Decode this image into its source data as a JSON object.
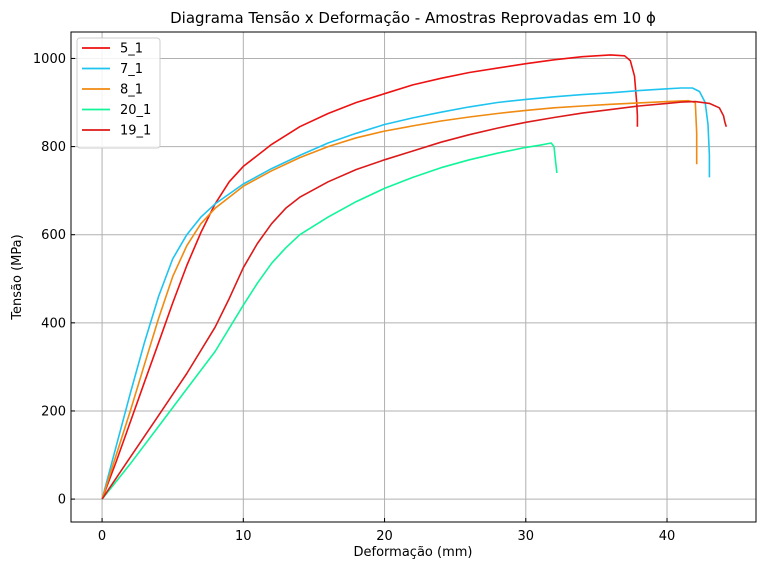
{
  "chart_data": {
    "type": "line",
    "title": "Diagrama Tensão x Deformação - Amostras Reprovadas em 10 ϕ",
    "xlabel": "Deformação (mm)",
    "ylabel": "Tensão (MPa)",
    "xlim": [
      -2.2,
      46.3
    ],
    "ylim": [
      -52,
      1060
    ],
    "xticks": [
      0,
      10,
      20,
      30,
      40
    ],
    "yticks": [
      0,
      200,
      400,
      600,
      800,
      1000
    ],
    "grid": true,
    "legend_position": "top-left",
    "series": [
      {
        "name": "5_1",
        "color": "#ee1111",
        "x": [
          0,
          1,
          2,
          3,
          4,
          5,
          6,
          7,
          8,
          9,
          10,
          12,
          14,
          16,
          18,
          20,
          22,
          24,
          26,
          28,
          30,
          32,
          34,
          35,
          36,
          37,
          37.4,
          37.7,
          37.85,
          37.9,
          37.9
        ],
        "y": [
          0,
          85,
          175,
          265,
          355,
          445,
          530,
          605,
          670,
          720,
          755,
          805,
          845,
          875,
          900,
          920,
          940,
          955,
          968,
          978,
          988,
          997,
          1004,
          1006,
          1008,
          1006,
          995,
          960,
          900,
          870,
          845
        ]
      },
      {
        "name": "7_1",
        "color": "#1ec4f0",
        "x": [
          0,
          1,
          2,
          3,
          4,
          5,
          6,
          7,
          8,
          10,
          12,
          14,
          16,
          18,
          20,
          22,
          24,
          26,
          28,
          30,
          32,
          34,
          36,
          38,
          40,
          41,
          41.8,
          42.3,
          42.7,
          42.9,
          43.0,
          43.0
        ],
        "y": [
          0,
          120,
          240,
          355,
          460,
          545,
          600,
          640,
          670,
          715,
          750,
          780,
          808,
          830,
          850,
          865,
          878,
          890,
          900,
          907,
          913,
          918,
          922,
          927,
          931,
          933,
          933,
          925,
          900,
          850,
          780,
          730
        ]
      },
      {
        "name": "8_1",
        "color": "#f08a10",
        "x": [
          0,
          1,
          2,
          3,
          4,
          5,
          6,
          7,
          8,
          10,
          12,
          14,
          16,
          18,
          20,
          22,
          24,
          26,
          28,
          30,
          32,
          34,
          36,
          38,
          40,
          41.5,
          42.0,
          42.1,
          42.1
        ],
        "y": [
          0,
          100,
          200,
          305,
          410,
          505,
          575,
          625,
          660,
          710,
          745,
          775,
          800,
          820,
          835,
          847,
          858,
          867,
          875,
          882,
          888,
          892,
          896,
          899,
          902,
          904,
          900,
          830,
          760
        ]
      },
      {
        "name": "20_1",
        "color": "#11f59a",
        "x": [
          0,
          2,
          4,
          6,
          8,
          10,
          11,
          12,
          13,
          14,
          16,
          18,
          20,
          22,
          24,
          26,
          28,
          30,
          31,
          31.8,
          32.0,
          32.1,
          32.2
        ],
        "y": [
          0,
          80,
          165,
          250,
          335,
          440,
          490,
          535,
          570,
          600,
          640,
          675,
          705,
          730,
          752,
          770,
          785,
          798,
          803,
          808,
          800,
          770,
          740
        ]
      },
      {
        "name": "19_1",
        "color": "#dd1a1a",
        "x": [
          0,
          2,
          4,
          6,
          8,
          9,
          10,
          11,
          12,
          13,
          14,
          16,
          18,
          20,
          22,
          24,
          26,
          28,
          30,
          32,
          34,
          36,
          38,
          40,
          41,
          42,
          43,
          43.7,
          44.0,
          44.1,
          44.2
        ],
        "y": [
          0,
          95,
          190,
          285,
          390,
          455,
          525,
          580,
          625,
          660,
          685,
          720,
          748,
          770,
          790,
          810,
          827,
          842,
          855,
          866,
          876,
          884,
          892,
          898,
          901,
          902,
          898,
          888,
          870,
          855,
          845
        ]
      }
    ]
  }
}
